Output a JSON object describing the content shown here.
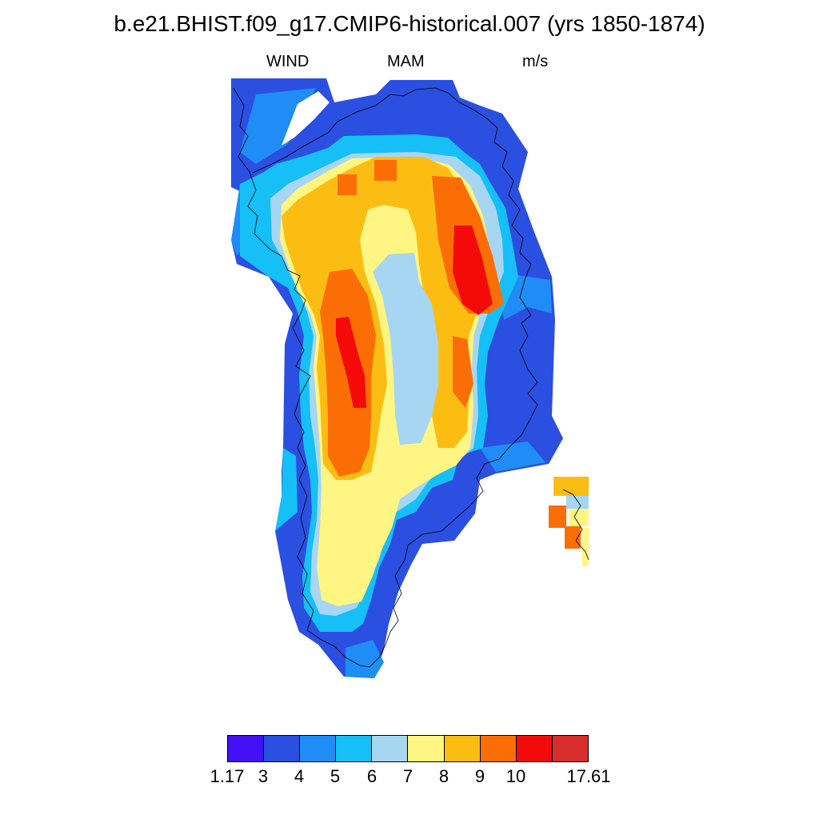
{
  "title": "b.e21.BHIST.f09_g17.CMIP6-historical.007 (yrs 1850-1874)",
  "subtitle": {
    "left": "WIND",
    "center": "MAM",
    "right": "m/s"
  },
  "colorbar": {
    "colors": [
      "#4410f5",
      "#2b4fe0",
      "#1f8df5",
      "#16bff5",
      "#a7d6f2",
      "#fff582",
      "#fcbd13",
      "#fb6e06",
      "#f50a0a",
      "#d72d2d"
    ],
    "labels": [
      "1.17",
      "3",
      "4",
      "5",
      "6",
      "7",
      "8",
      "9",
      "10",
      "17.61"
    ]
  }
}
